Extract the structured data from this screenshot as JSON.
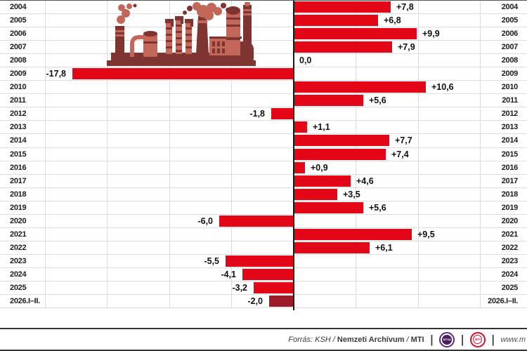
{
  "chart_data": {
    "type": "bar",
    "orientation": "horizontal",
    "title": "",
    "categories": [
      "2004",
      "2005",
      "2006",
      "2007",
      "2008",
      "2009",
      "2010",
      "2011",
      "2012",
      "2013",
      "2014",
      "2015",
      "2016",
      "2017",
      "2018",
      "2019",
      "2020",
      "2021",
      "2022",
      "2023",
      "2024",
      "2025",
      "2026.I–II."
    ],
    "values": [
      7.8,
      6.8,
      9.9,
      7.9,
      0.0,
      -17.8,
      10.6,
      5.6,
      -1.8,
      1.1,
      7.7,
      7.4,
      0.9,
      4.6,
      3.5,
      5.6,
      -6.0,
      9.5,
      6.1,
      -5.5,
      -4.1,
      -3.2,
      -2.0
    ],
    "labels": [
      "+7,8",
      "+6,8",
      "+9,9",
      "+7,9",
      "0,0",
      "-17,8",
      "+10,6",
      "+5,6",
      "-1,8",
      "+1,1",
      "+7,7",
      "+7,4",
      "+0,9",
      "+4,6",
      "+3,5",
      "+5,6",
      "-6,0",
      "+9,5",
      "+6,1",
      "-5,5",
      "-4,1",
      "-3,2",
      "-2,0"
    ],
    "xlim": [
      -20,
      15
    ],
    "grid_step": 5,
    "grid": "on",
    "bar_color": "#E30617",
    "last_bar_color": "#9E1B2B",
    "axis_color": "#1a1a1a"
  },
  "footer": {
    "source_italic": "Forrás: KSH /",
    "source_bold": "Nemzeti Archívum",
    "source_sep": "/",
    "source_bold2": "MTI",
    "divider_glyph": "|",
    "logo_mtva_label": "MTVA",
    "logo_mti_label": "MTI",
    "logo_mtva_color": "#5B2A84",
    "logo_mti_color": "#D40F2E",
    "website": "www.m"
  },
  "illustration": {
    "name": "factory-illustration",
    "dark_color": "#7E3431",
    "light_color": "#C3675A"
  }
}
